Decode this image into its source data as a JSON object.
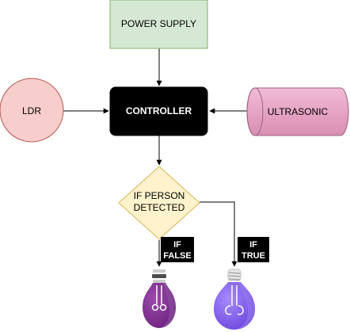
{
  "nodes": {
    "power_supply": {
      "label": "POWER SUPPLY",
      "fill": "#d5e8d4",
      "stroke": "#82b366"
    },
    "ldr": {
      "label": "LDR",
      "fill": "#f8cecc",
      "stroke": "#b85450"
    },
    "controller": {
      "label": "CONTROLLER",
      "fill": "#000000",
      "text_color": "#ffffff"
    },
    "ultrasonic": {
      "label": "ULTRASONIC",
      "fill": "#e6a4c4",
      "stroke": "#996185"
    },
    "decision": {
      "line1": "IF PERSON",
      "line2": "DETECTED",
      "fill": "#fff2cc",
      "stroke": "#d6b656"
    }
  },
  "branch_labels": {
    "false": {
      "line1": "IF",
      "line2": "FALSE"
    },
    "true": {
      "line1": "IF",
      "line2": "TRUE"
    }
  },
  "bulbs": {
    "off": {
      "icon": "light-bulb-off-icon",
      "color": "#7b2f8c"
    },
    "on": {
      "icon": "light-bulb-on-icon",
      "color": "#7e57e0"
    }
  }
}
